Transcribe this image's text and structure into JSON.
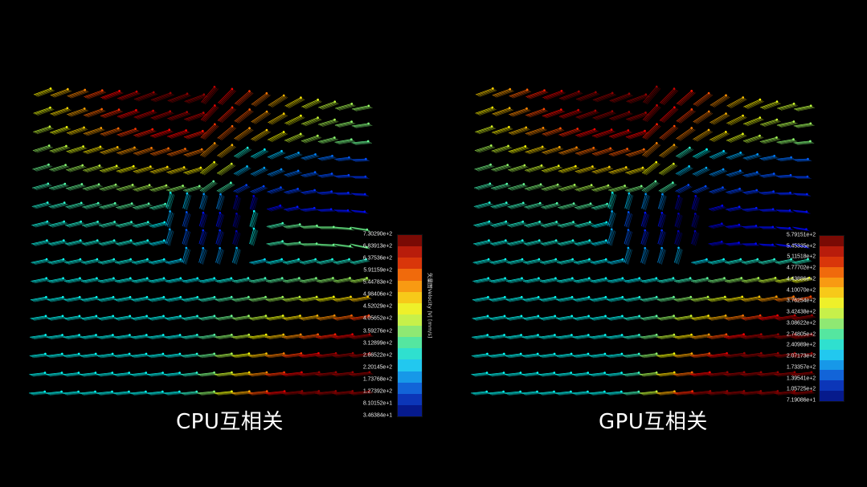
{
  "chart_data": [
    {
      "type": "vector_field_3d",
      "title": "CPU互相关",
      "colorbar": {
        "label": "矢量图Velocity |V| [mm/s]",
        "ticks": [
          "7.30290e+2",
          "6.83913e+2",
          "6.37536e+2",
          "5.91159e+2",
          "5.44783e+2",
          "4.98406e+2",
          "4.52029e+2",
          "4.05652e+2",
          "3.59276e+2",
          "3.12899e+2",
          "2.66522e+2",
          "2.20145e+2",
          "1.73768e+2",
          "1.27392e+2",
          "8.10152e+1",
          "3.46384e+1"
        ],
        "max": 730.29,
        "min": 34.6384,
        "colormap": "jet"
      },
      "grid": {
        "rows": 17,
        "cols": 20
      },
      "grid_on": false,
      "legend_position": "right"
    },
    {
      "type": "vector_field_3d",
      "title": "GPU互相关",
      "colorbar": {
        "label": "",
        "ticks": [
          "5.79151e+2",
          "5.45335e+2",
          "5.11518e+2",
          "4.77702e+2",
          "4.43886e+2",
          "4.10070e+2",
          "3.76254e+2",
          "3.42438e+2",
          "3.08622e+2",
          "2.74805e+2",
          "2.40989e+2",
          "2.07173e+2",
          "1.73357e+2",
          "1.39541e+2",
          "1.05725e+2",
          "7.19086e+1"
        ],
        "max": 579.151,
        "min": 71.9086,
        "colormap": "jet"
      },
      "grid": {
        "rows": 17,
        "cols": 20
      },
      "grid_on": false,
      "legend_position": "right"
    }
  ],
  "panels": {
    "left": {
      "caption": "CPU互相关",
      "colorbar_title": "矢量图Velocity |V| [mm/s]"
    },
    "right": {
      "caption": "GPU互相关"
    }
  },
  "colormap": [
    "#7a0a04",
    "#b81c0b",
    "#d9360a",
    "#f06a0c",
    "#f89a12",
    "#f7c919",
    "#eef02a",
    "#c7f04a",
    "#8fe873",
    "#55e6a0",
    "#2fe0cf",
    "#22c8ef",
    "#1798e8",
    "#1264d8",
    "#0c36b8",
    "#061a8c"
  ]
}
